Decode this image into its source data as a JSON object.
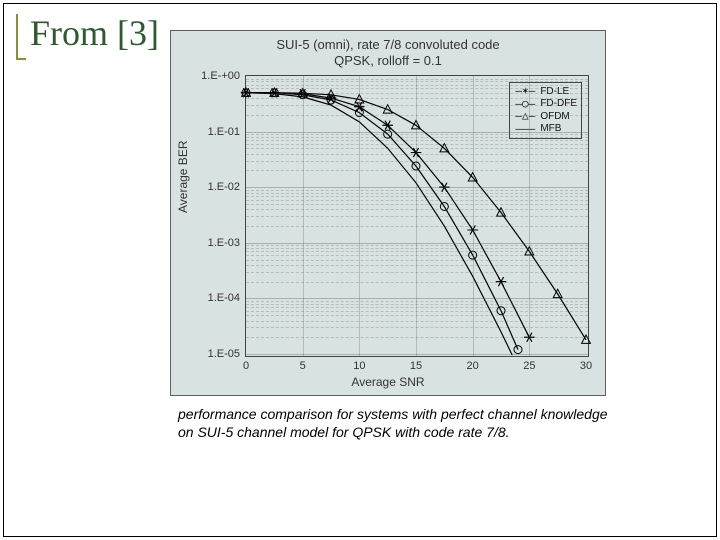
{
  "slide": {
    "title": "From [3]",
    "accent_color": "#8a8f3a",
    "title_color": "#2f5a2f",
    "title_fontsize": 36,
    "border_color": "#000000"
  },
  "caption": {
    "text": "performance comparison for systems with perfect channel knowledge on SUI-5 channel model for QPSK with code rate 7/8.",
    "fontsize": 14,
    "italic": true
  },
  "chart": {
    "type": "line",
    "background_color": "#d9e2e2",
    "border_color": "#5b6161",
    "title_line1": "SUI-5 (omni), rate 7/8 convoluted code",
    "title_line2": "QPSK, rolloff = 0.1",
    "title_fontsize": 13,
    "title_color": "#333333",
    "ylabel": "Average BER",
    "xlabel": "Average SNR",
    "label_fontsize": 12,
    "label_color": "#333333",
    "xlim": [
      0,
      30
    ],
    "ylim_exp": [
      -5,
      0
    ],
    "yscale": "log",
    "y_ticks": [
      "1.E-+00",
      "1.E-01",
      "1.E-02",
      "1.E-03",
      "1.E-04",
      "1.E-05"
    ],
    "x_ticks": [
      0,
      5,
      10,
      15,
      20,
      25,
      30
    ],
    "grid_color": "#606060",
    "grid_minor": true,
    "line_color": "#000000",
    "line_width": 1.2,
    "marker_size": 4,
    "series": [
      {
        "name": "FD-LE",
        "marker": "star",
        "points": [
          [
            0,
            0.5
          ],
          [
            2.5,
            0.5
          ],
          [
            5,
            0.48
          ],
          [
            7.5,
            0.4
          ],
          [
            10,
            0.28
          ],
          [
            12.5,
            0.13
          ],
          [
            15,
            0.042
          ],
          [
            17.5,
            0.01
          ],
          [
            20,
            0.0017
          ],
          [
            22.5,
            0.0002
          ],
          [
            25,
            2e-05
          ]
        ]
      },
      {
        "name": "FD-DFE",
        "marker": "open-circle",
        "points": [
          [
            0,
            0.5
          ],
          [
            2.5,
            0.5
          ],
          [
            5,
            0.46
          ],
          [
            7.5,
            0.37
          ],
          [
            10,
            0.22
          ],
          [
            12.5,
            0.09
          ],
          [
            15,
            0.024
          ],
          [
            17.5,
            0.0045
          ],
          [
            20,
            0.0006
          ],
          [
            22.5,
            6e-05
          ],
          [
            24,
            1.2e-05
          ]
        ]
      },
      {
        "name": "OFDM",
        "marker": "open-triangle",
        "points": [
          [
            0,
            0.5
          ],
          [
            2.5,
            0.5
          ],
          [
            5,
            0.49
          ],
          [
            7.5,
            0.46
          ],
          [
            10,
            0.38
          ],
          [
            12.5,
            0.25
          ],
          [
            15,
            0.13
          ],
          [
            17.5,
            0.05
          ],
          [
            20,
            0.015
          ],
          [
            22.5,
            0.0035
          ],
          [
            25,
            0.0007
          ],
          [
            27.5,
            0.00012
          ],
          [
            30,
            1.8e-05
          ]
        ]
      },
      {
        "name": "MFB",
        "marker": "none",
        "points": [
          [
            0,
            0.5
          ],
          [
            2.5,
            0.48
          ],
          [
            5,
            0.42
          ],
          [
            7.5,
            0.3
          ],
          [
            10,
            0.15
          ],
          [
            12.5,
            0.05
          ],
          [
            15,
            0.012
          ],
          [
            17.5,
            0.002
          ],
          [
            20,
            0.00025
          ],
          [
            22.5,
            2.5e-05
          ],
          [
            23.5,
            9.5e-06
          ]
        ]
      }
    ],
    "legend": {
      "position": "top-right",
      "border_color": "#444444",
      "fontsize": 10,
      "background": "#d9e2e2",
      "items": [
        {
          "label": "FD-LE",
          "icon": "—✶—"
        },
        {
          "label": "FD-DFE",
          "icon": "—○—"
        },
        {
          "label": "OFDM",
          "icon": "—△—"
        },
        {
          "label": "MFB",
          "icon": "———"
        }
      ]
    }
  }
}
